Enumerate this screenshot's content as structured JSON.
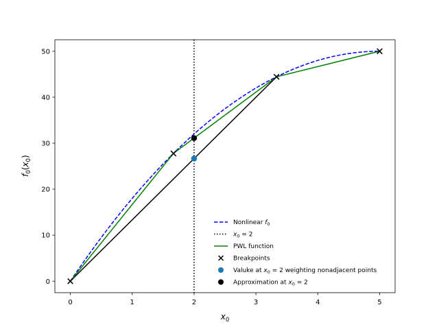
{
  "chart_data": {
    "type": "line",
    "xlabel": "x0",
    "ylabel": "f0(x0)",
    "xlim": [
      -0.25,
      5.25
    ],
    "ylim": [
      -2.5,
      52.5
    ],
    "x_ticks": [
      0,
      1,
      2,
      3,
      4,
      5
    ],
    "y_ticks": [
      0,
      10,
      20,
      30,
      40,
      50
    ],
    "x_tick_labels": [
      "0",
      "1",
      "2",
      "3",
      "4",
      "5"
    ],
    "y_tick_labels": [
      "0",
      "10",
      "20",
      "30",
      "40",
      "50"
    ],
    "grid": false,
    "legend_placement": "lower-right",
    "series": [
      {
        "name": "Nonlinear f0",
        "style": "dashed",
        "color": "#0000ff",
        "function": "f(x) = 20x - 2x^2",
        "x": [
          0,
          0.5,
          1,
          1.5,
          2,
          2.5,
          3,
          3.5,
          4,
          4.5,
          5
        ],
        "y": [
          0,
          9.5,
          18,
          25.5,
          32,
          37.5,
          42,
          45.5,
          48,
          49.5,
          50
        ]
      },
      {
        "name": "x0 = 2",
        "style": "dotted",
        "color": "#000000",
        "x_value": 2
      },
      {
        "name": "PWL function",
        "style": "solid",
        "color": "#008000",
        "x": [
          0,
          1.6667,
          3.3333,
          5
        ],
        "y": [
          0,
          27.78,
          44.44,
          50
        ]
      },
      {
        "name": "Breakpoints",
        "style": "marker-x",
        "color": "#000000",
        "x": [
          0,
          1.6667,
          3.3333,
          5
        ],
        "y": [
          0,
          27.78,
          44.44,
          50
        ]
      },
      {
        "name": "Valuke at x0 = 2 weighting nonadjacent points",
        "style": "marker-dot",
        "color": "#1f77b4",
        "x": [
          2
        ],
        "y": [
          26.67
        ]
      },
      {
        "name": "Approximation at x0 = 2",
        "style": "marker-dot",
        "color": "#000000",
        "x": [
          2
        ],
        "y": [
          31.11
        ]
      }
    ],
    "nonadjacent_segment": {
      "color": "#000000",
      "x": [
        0,
        3.3333
      ],
      "y": [
        0,
        44.44
      ]
    },
    "legend": [
      {
        "pre": "Nonlinear ",
        "base": "f",
        "sub": "0",
        "post": ""
      },
      {
        "pre": "",
        "base": "x",
        "sub": "0",
        "post": " = 2"
      },
      {
        "pre": "PWL function",
        "base": "",
        "sub": "",
        "post": ""
      },
      {
        "pre": "Breakpoints",
        "base": "",
        "sub": "",
        "post": ""
      },
      {
        "pre": "Valuke at ",
        "base": "x",
        "sub": "0",
        "post": " = 2 weighting nonadjacent points"
      },
      {
        "pre": "Approximation at ",
        "base": "x",
        "sub": "0",
        "post": " = 2"
      }
    ]
  }
}
